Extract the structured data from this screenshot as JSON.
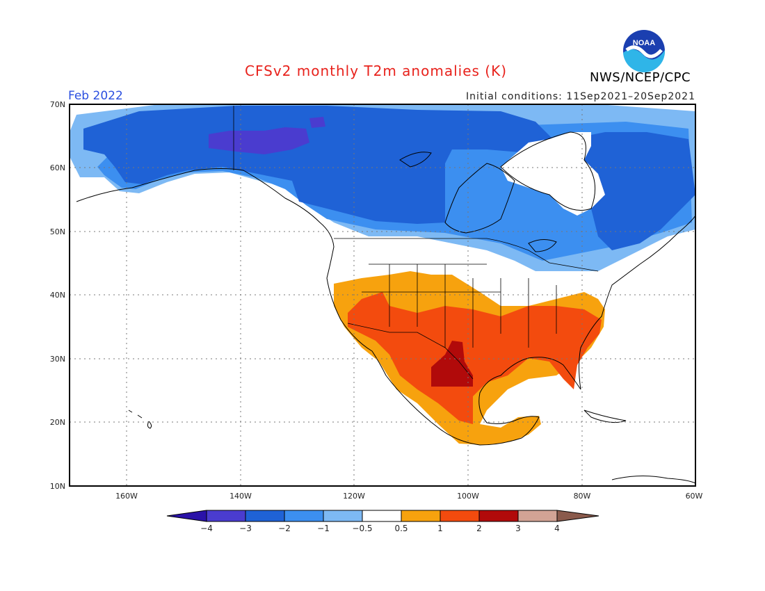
{
  "title": "CFSv2 monthly T2m anomalies (K)",
  "month": "Feb 2022",
  "initial_conditions": "Initial conditions: 11Sep2021–20Sep2021",
  "agency": "NWS/NCEP/CPC",
  "logo_text": "NOAA",
  "lat_labels": [
    "70N",
    "60N",
    "50N",
    "40N",
    "30N",
    "20N",
    "10N"
  ],
  "lon_labels": [
    "160W",
    "140W",
    "120W",
    "100W",
    "80W",
    "60W"
  ],
  "colorbar": {
    "tick_labels": [
      "−4",
      "−3",
      "−2",
      "−1",
      "−0.5",
      "0.5",
      "1",
      "2",
      "3",
      "4"
    ],
    "colors": [
      "#2a12a8",
      "#4a3ccf",
      "#1f62d6",
      "#3c8ff0",
      "#7db9f4",
      "#ffffff",
      "#f7a20e",
      "#f34b0e",
      "#b10a0a",
      "#d2a395",
      "#8a5a4c"
    ]
  },
  "map_layers": {
    "cold_-3_to_-4": "#4a3ccf",
    "cold_-2_to_-3": "#1f62d6",
    "cold_-1_to_-2": "#3c8ff0",
    "cold_-0.5_to_-1": "#7db9f4",
    "warm_0.5_to_1": "#f7a20e",
    "warm_1_to_2": "#f34b0e",
    "warm_2_to_3": "#b10a0a"
  }
}
